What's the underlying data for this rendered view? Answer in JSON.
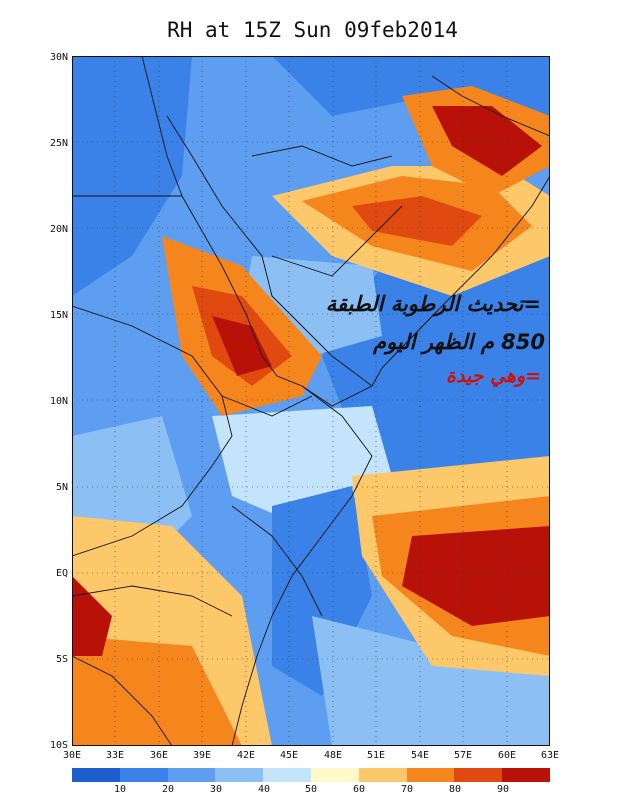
{
  "title": "RH at 15Z Sun 09feb2014",
  "lat_labels": [
    "30N",
    "25N",
    "20N",
    "15N",
    "10N",
    "5N",
    "EQ",
    "5S",
    "10S"
  ],
  "lon_labels": [
    "30E",
    "33E",
    "36E",
    "39E",
    "42E",
    "45E",
    "48E",
    "51E",
    "54E",
    "57E",
    "60E",
    "63E"
  ],
  "colorbar": {
    "labels": [
      "10",
      "20",
      "30",
      "40",
      "50",
      "60",
      "70",
      "80",
      "90"
    ],
    "colors": [
      "#1e5fcf",
      "#3a82e8",
      "#5e9ef0",
      "#8cc0f4",
      "#c4e4fb",
      "#fff8c8",
      "#fcc86a",
      "#f5861e",
      "#e04a10",
      "#b81208"
    ]
  },
  "annotations": {
    "line1": "=تحديث الرطوبة الطبقة",
    "line2": "850 م الظهر اليوم",
    "line3": "=وهي جيدة"
  }
}
